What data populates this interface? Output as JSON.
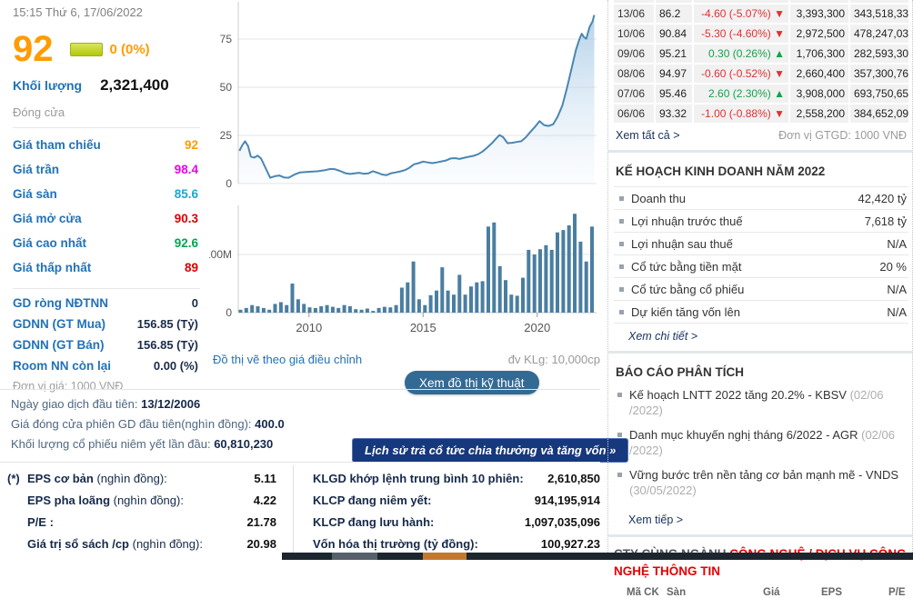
{
  "colors": {
    "c-orange": "#ff9c00",
    "c-blue": "#2172b8",
    "c-link": "#17325e",
    "c-red-chg": "#e03131",
    "c-green-chg": "#14a34a",
    "c-ind-red": "#e60000",
    "c-btn-blue": "#336a94",
    "c-btn-navy": "#16387c"
  },
  "header": {
    "datetime": "15:15 Thứ 6, 17/06/2022"
  },
  "quote": {
    "price": "92",
    "change": "0 (0%)",
    "volume_label": "Khối lượng",
    "volume": "2,321,400",
    "status": "Đóng cửa",
    "rows": [
      {
        "label": "Giá tham chiếu",
        "value": "92",
        "color": "#ff9c00"
      },
      {
        "label": "Giá trần",
        "value": "98.4",
        "color": "#ee00ee"
      },
      {
        "label": "Giá sàn",
        "value": "85.6",
        "color": "#19a8d1"
      },
      {
        "label": "Giá mở cửa",
        "value": "90.3",
        "color": "#dd0000"
      },
      {
        "label": "Giá cao nhất",
        "value": "92.6",
        "color": "#00a650"
      },
      {
        "label": "Giá thấp nhất",
        "value": "89",
        "color": "#dd0000"
      }
    ],
    "foreign_rows": [
      {
        "label": "GD ròng NĐTNN",
        "value": "0"
      },
      {
        "label": "GDNN (GT Mua)",
        "value": "156.85 (Tỷ)"
      },
      {
        "label": "GDNN (GT Bán)",
        "value": "156.85 (Tỷ)"
      },
      {
        "label": "Room NN còn lại",
        "value": "0.00 (%)"
      }
    ],
    "price_unit_note": "Đơn vị giá: 1000 VNĐ"
  },
  "chart": {
    "footnote_left": "Đồ thị vẽ theo giá điều chỉnh",
    "footnote_right": "đv KLg: 10,000cp",
    "tech_chart_button": "Xem đồ thị kỹ thuật"
  },
  "chart_data": [
    {
      "type": "area",
      "title": "Adjusted price history",
      "ylabel": "price (1000 VND)",
      "xlim": [
        2006.9,
        2022.6
      ],
      "ylim": [
        0,
        95
      ],
      "yticks": [
        {
          "v": 0,
          "label": "0"
        },
        {
          "v": 25,
          "label": "25"
        },
        {
          "v": 50,
          "label": "50"
        },
        {
          "v": 75,
          "label": "75"
        }
      ],
      "line_color": "#4a86b2",
      "points": [
        [
          2006.95,
          17
        ],
        [
          2007.08,
          20
        ],
        [
          2007.2,
          22
        ],
        [
          2007.33,
          19.5
        ],
        [
          2007.45,
          14
        ],
        [
          2007.6,
          13.5
        ],
        [
          2007.75,
          14.5
        ],
        [
          2007.9,
          13
        ],
        [
          2008.1,
          8
        ],
        [
          2008.3,
          3
        ],
        [
          2008.5,
          3.8
        ],
        [
          2008.7,
          4.2
        ],
        [
          2008.9,
          3.2
        ],
        [
          2009.1,
          3
        ],
        [
          2009.35,
          4.6
        ],
        [
          2009.6,
          5.8
        ],
        [
          2009.85,
          6
        ],
        [
          2010.1,
          6.2
        ],
        [
          2010.4,
          6.4
        ],
        [
          2010.7,
          7
        ],
        [
          2010.95,
          7.6
        ],
        [
          2011.15,
          7.4
        ],
        [
          2011.35,
          6.6
        ],
        [
          2011.6,
          5.4
        ],
        [
          2011.8,
          5
        ],
        [
          2012.0,
          5.3
        ],
        [
          2012.2,
          5.6
        ],
        [
          2012.4,
          5.1
        ],
        [
          2012.6,
          5.3
        ],
        [
          2012.8,
          6.4
        ],
        [
          2013.0,
          5.6
        ],
        [
          2013.2,
          4.7
        ],
        [
          2013.4,
          4.4
        ],
        [
          2013.6,
          5.4
        ],
        [
          2013.8,
          5.8
        ],
        [
          2014.0,
          6.3
        ],
        [
          2014.2,
          7
        ],
        [
          2014.4,
          8.2
        ],
        [
          2014.6,
          10
        ],
        [
          2014.8,
          10.6
        ],
        [
          2015.0,
          11.4
        ],
        [
          2015.2,
          11
        ],
        [
          2015.4,
          10.6
        ],
        [
          2015.6,
          11
        ],
        [
          2015.8,
          11.5
        ],
        [
          2016.0,
          12
        ],
        [
          2016.2,
          13
        ],
        [
          2016.4,
          13.2
        ],
        [
          2016.6,
          12.8
        ],
        [
          2016.8,
          13.4
        ],
        [
          2017.0,
          13.9
        ],
        [
          2017.2,
          14.4
        ],
        [
          2017.4,
          15.2
        ],
        [
          2017.6,
          16.6
        ],
        [
          2017.8,
          18.6
        ],
        [
          2018.0,
          20.8
        ],
        [
          2018.2,
          23.4
        ],
        [
          2018.35,
          25.2
        ],
        [
          2018.5,
          24.2
        ],
        [
          2018.7,
          21
        ],
        [
          2018.9,
          21.2
        ],
        [
          2019.1,
          21.6
        ],
        [
          2019.3,
          22
        ],
        [
          2019.5,
          24
        ],
        [
          2019.7,
          26.8
        ],
        [
          2019.9,
          29.4
        ],
        [
          2020.1,
          32.4
        ],
        [
          2020.3,
          30.4
        ],
        [
          2020.5,
          29.9
        ],
        [
          2020.7,
          30.8
        ],
        [
          2020.9,
          34.8
        ],
        [
          2021.1,
          40.5
        ],
        [
          2021.3,
          49.5
        ],
        [
          2021.5,
          59.5
        ],
        [
          2021.7,
          69.5
        ],
        [
          2021.85,
          75
        ],
        [
          2021.95,
          77.8
        ],
        [
          2022.05,
          76
        ],
        [
          2022.15,
          75.2
        ],
        [
          2022.3,
          81.5
        ],
        [
          2022.42,
          84
        ],
        [
          2022.5,
          87.5
        ]
      ]
    },
    {
      "type": "bar",
      "title": "Trading volume",
      "ylabel": "shares",
      "xlim": [
        2006.9,
        2022.6
      ],
      "ylim": [
        0,
        180
      ],
      "x_start": 2007.0,
      "x_step": 0.2525,
      "bar_color": "#4a7ea1",
      "yticks": [
        {
          "v": 0,
          "label": "0"
        },
        {
          "v": 100,
          "label": "100M"
        }
      ],
      "xticks": [
        {
          "v": 2010,
          "label": "2010"
        },
        {
          "v": 2015,
          "label": "2015"
        },
        {
          "v": 2020,
          "label": "2020"
        }
      ],
      "values_millions": [
        5,
        8,
        13,
        11,
        8,
        5,
        15,
        18,
        13,
        50,
        23,
        15,
        9,
        8,
        11,
        13,
        10,
        8,
        13,
        11,
        6,
        5,
        7,
        3,
        8,
        10,
        9,
        13,
        43,
        52,
        88,
        23,
        13,
        30,
        38,
        78,
        38,
        31,
        65,
        31,
        45,
        52,
        54,
        148,
        155,
        80,
        56,
        31,
        29,
        60,
        108,
        100,
        109,
        116,
        108,
        138,
        142,
        150,
        170,
        122,
        88,
        148
      ]
    }
  ],
  "history_table": {
    "rows": [
      {
        "date": "13/06",
        "price": "86.2",
        "change": "-4.60 (-5.07%)",
        "arrow": "▼",
        "dir": "down",
        "volume": "3,393,300",
        "value": "343,518,330"
      },
      {
        "date": "10/06",
        "price": "90.84",
        "change": "-5.30 (-4.60%)",
        "arrow": "▼",
        "dir": "down",
        "volume": "2,972,500",
        "value": "478,247,030"
      },
      {
        "date": "09/06",
        "price": "95.21",
        "change": "0.30 (0.26%)",
        "arrow": "▲",
        "dir": "up",
        "volume": "1,706,300",
        "value": "282,593,300"
      },
      {
        "date": "08/06",
        "price": "94.97",
        "change": "-0.60 (-0.52%)",
        "arrow": "▼",
        "dir": "down",
        "volume": "2,660,400",
        "value": "357,300,760"
      },
      {
        "date": "07/06",
        "price": "95.46",
        "change": "2.60 (2.30%)",
        "arrow": "▲",
        "dir": "up",
        "volume": "3,908,000",
        "value": "693,750,650"
      },
      {
        "date": "06/06",
        "price": "93.32",
        "change": "-1.00 (-0.88%)",
        "arrow": "▼",
        "dir": "down",
        "volume": "2,558,200",
        "value": "384,652,090"
      }
    ],
    "view_all": "Xem tất cả >",
    "unit_note": "Đơn vị GTGD: 1000 VNĐ"
  },
  "listing_info": {
    "lines": [
      {
        "label": "Ngày giao dịch đầu tiên: ",
        "value": "13/12/2006"
      },
      {
        "label": "Giá đóng cửa phiên GD đầu tiên(nghìn đồng): ",
        "value": "400.0"
      },
      {
        "label": "Khối lượng cổ phiếu niêm yết lần đầu: ",
        "value": "60,810,230"
      }
    ]
  },
  "dividend_button": "Lịch sử trả cổ tức chia thưởng và tăng vốn »",
  "stats_left": {
    "rows": [
      {
        "prefix": "(*)",
        "bold": "EPS cơ bản",
        "rest": " (nghìn đồng):",
        "value": "5.11"
      },
      {
        "prefix": "",
        "bold": "EPS pha loãng",
        "rest": " (nghìn đồng):",
        "value": "4.22"
      },
      {
        "prefix": "",
        "bold": "P/E :",
        "rest": "",
        "value": "21.78"
      },
      {
        "prefix": "",
        "bold": "Giá trị sổ sách /cp",
        "rest": " (nghìn đồng):",
        "value": "20.98"
      }
    ]
  },
  "stats_right": {
    "rows": [
      {
        "label": "KLGD khớp lệnh trung bình 10 phiên:",
        "value": "2,610,850"
      },
      {
        "label": "KLCP đang niêm yết:",
        "value": "914,195,914"
      },
      {
        "label": "KLCP đang lưu hành:",
        "value": "1,097,035,096"
      },
      {
        "label": "Vốn hóa thị trường (tỷ đồng):",
        "value": "100,927.23"
      }
    ]
  },
  "business_plan": {
    "title": "KẾ HOẠCH KINH DOANH NĂM 2022",
    "rows": [
      {
        "label": "Doanh thu",
        "value": "42,420 tỷ"
      },
      {
        "label": "Lợi nhuận trước thuế",
        "value": "7,618 tỷ"
      },
      {
        "label": "Lợi nhuận sau thuế",
        "value": "N/A"
      },
      {
        "label": "Cổ tức bằng tiền mặt",
        "value": "20 %"
      },
      {
        "label": "Cổ tức bằng cổ phiếu",
        "value": "N/A"
      },
      {
        "label": "Dự kiến tăng vốn lên",
        "value": "N/A"
      }
    ],
    "view_detail": "Xem chi tiết >"
  },
  "analysis_reports": {
    "title": "BÁO CÁO PHÂN TÍCH",
    "items": [
      {
        "text": "Kế hoạch LNTT 2022 tăng 20.2% - KBSV",
        "date": "(02/06 /2022)"
      },
      {
        "text": "Danh mục khuyến nghị tháng 6/2022 - AGR",
        "date": "(02/06 /2022)"
      },
      {
        "text": "Vững bước trên nền tảng cơ bản mạnh mẽ - VNDS",
        "date": "(30/05/2022)"
      }
    ],
    "view_more": "Xem tiếp >"
  },
  "related": {
    "prefix": "CTY CÙNG NGÀNH ",
    "industry": "CÔNG NGHỆ / DỊCH VỤ CÔNG NGHỆ THÔNG TIN",
    "table_headers": [
      "Mã CK",
      "Sàn",
      "Giá",
      "EPS",
      "P/E"
    ]
  }
}
